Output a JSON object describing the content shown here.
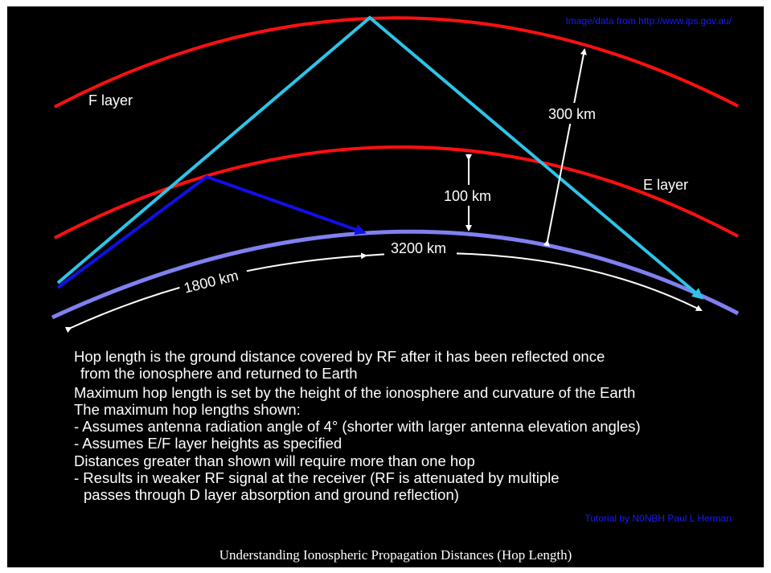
{
  "source_note": "Image/data from http://www.ips.gov.au/",
  "labels": {
    "f_layer": "F layer",
    "e_layer": "E layer",
    "f_height": "300 km",
    "e_height": "100 km",
    "f_hop": "3200 km",
    "e_hop": "1800 km"
  },
  "body": [
    "Hop length is the ground distance covered by RF after it has been reflected once",
    "from the ionosphere and returned to Earth",
    "Maximum hop length is set by the height of the ionosphere and curvature of the Earth",
    "The maximum hop lengths shown:",
    "- Assumes antenna radiation angle of 4° (shorter with larger antenna elevation angles)",
    "- Assumes E/F layer heights as specified",
    "Distances greater than shown will require more than one hop",
    "- Results in weaker RF signal at the receiver (RF is attenuated by multiple",
    "passes through D layer absorption and ground reflection)"
  ],
  "credit": "Tutorial by N0NBH Paul L Herman",
  "caption": "Understanding Ionospheric Propagation Distances (Hop Length)"
}
